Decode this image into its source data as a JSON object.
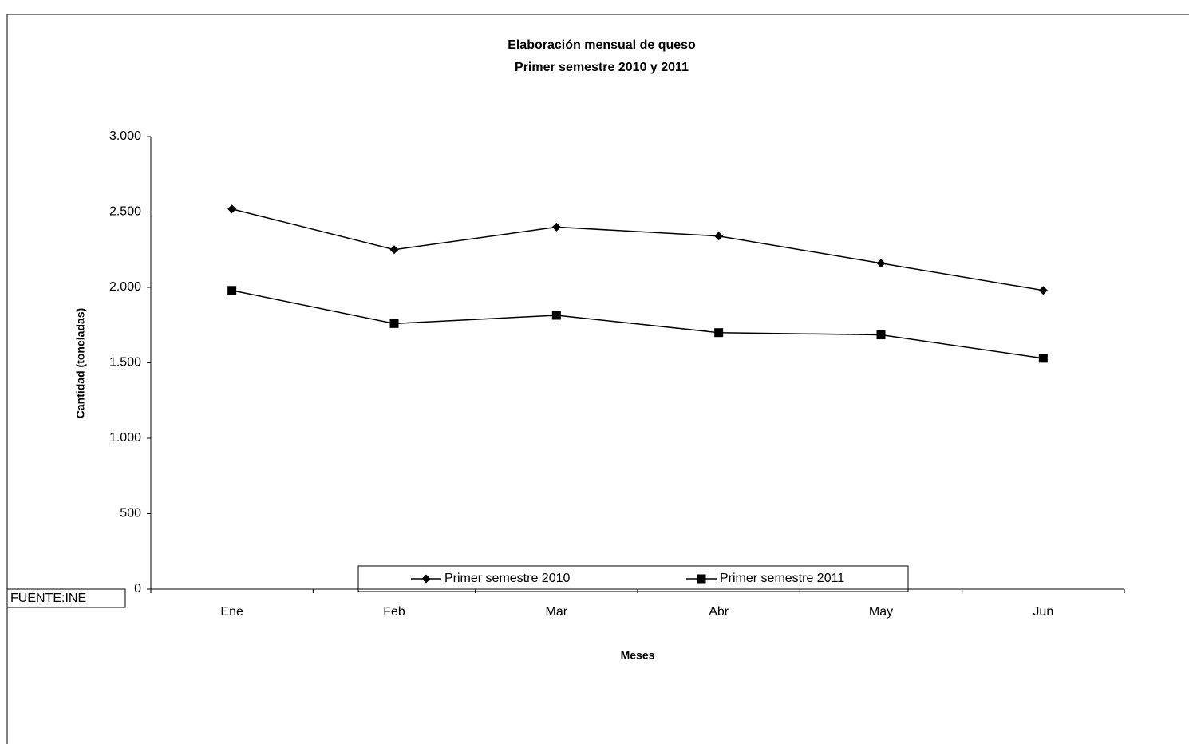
{
  "chart_data": {
    "type": "line",
    "title": "Elaboración mensual de queso",
    "subtitle": "Primer semestre 2010 y 2011",
    "x_label": "Meses",
    "y_label": "Cantidad (toneladas)",
    "annotation": "FUENTE:INE",
    "categories": [
      "Ene",
      "Feb",
      "Mar",
      "Abr",
      "May",
      "Jun"
    ],
    "series": [
      {
        "name": "Primer semestre 2010",
        "color": "#000000",
        "marker": "diamond",
        "values": [
          2520,
          2250,
          2400,
          2340,
          2160,
          1980
        ]
      },
      {
        "name": "Primer semestre 2011",
        "color": "#000000",
        "marker": "square",
        "values": [
          1980,
          1760,
          1815,
          1700,
          1685,
          1530
        ]
      }
    ],
    "ylim": [
      0,
      3000
    ],
    "yticks": [
      0,
      500,
      {
        "value": 1000,
        "label": "1.000"
      },
      {
        "value": 1500,
        "label": "1.500"
      },
      {
        "value": 2000,
        "label": "2.000"
      },
      {
        "value": 2500,
        "label": "2.500"
      },
      {
        "value": 3000,
        "label": "3.000"
      }
    ],
    "grid": false,
    "legend": "bottom"
  }
}
